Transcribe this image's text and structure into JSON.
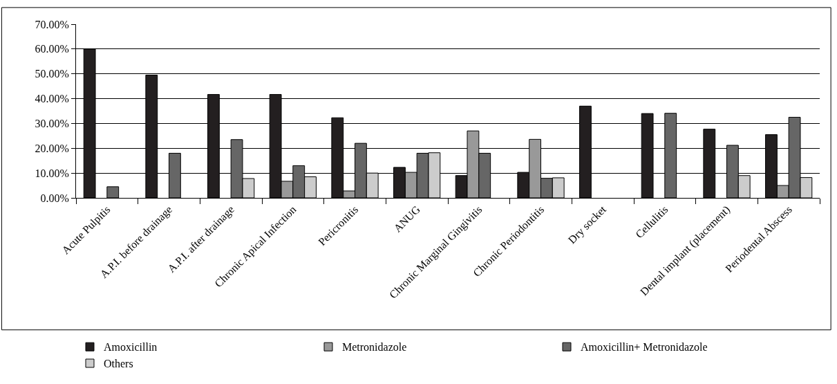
{
  "chart_data": {
    "type": "bar",
    "categories": [
      "Acute Pulpitis",
      "A.P.I. before drainage",
      "A.P.I. after drainage",
      "Chronic Apical Infection",
      "Pericronitis",
      "ANUG",
      "Chronic Marginal Gingivitis",
      "Chronic Periodontitis",
      "Dry socket",
      "Cellulitis",
      "Dental implant (placement)",
      "Periodental Abscess"
    ],
    "series": [
      {
        "name": "Amoxicillin",
        "color": "#231f20",
        "values": [
          60,
          49.5,
          41.7,
          41.7,
          32.3,
          12.3,
          9,
          10.3,
          37,
          34,
          27.7,
          25.5
        ]
      },
      {
        "name": "Metronidazole",
        "color": "#999999",
        "values": [
          null,
          null,
          null,
          6.7,
          2.8,
          10.3,
          27,
          23.6,
          null,
          null,
          null,
          5
        ]
      },
      {
        "name": "Amoxicillin+ Metronidazole",
        "color": "#666666",
        "values": [
          4.5,
          18,
          23.5,
          13,
          22,
          18,
          18,
          7.9,
          null,
          34.1,
          21.2,
          32.5
        ]
      },
      {
        "name": "Others",
        "color": "#cccccc",
        "values": [
          null,
          null,
          7.8,
          8.5,
          10,
          18.2,
          null,
          8.1,
          null,
          null,
          9,
          8.2
        ]
      }
    ],
    "ylim": [
      0,
      70
    ],
    "yticks": [
      {
        "value": 0,
        "label": "0.00%"
      },
      {
        "value": 10,
        "label": "10.00%"
      },
      {
        "value": 20,
        "label": "20.00%"
      },
      {
        "value": 30,
        "label": "30.00%"
      },
      {
        "value": 40,
        "label": "40.00%"
      },
      {
        "value": 50,
        "label": "50.00%"
      },
      {
        "value": 60,
        "label": "60.00%"
      },
      {
        "value": 70,
        "label": "70.00%"
      }
    ],
    "grid": "y",
    "legend": "bottom"
  }
}
